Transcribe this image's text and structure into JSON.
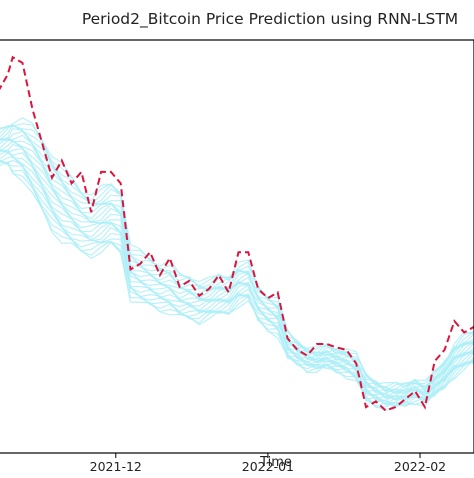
{
  "chart_data": {
    "type": "line",
    "title": "Period2_Bitcoin Price Prediction using RNN-LSTM",
    "xlabel": "Time",
    "ylabel": "",
    "x_tick_labels": [
      "2021-12",
      "2022-01",
      "2022-02"
    ],
    "x_tick_dates": [
      "2021-12-01",
      "2022-01-01",
      "2022-02-01"
    ],
    "xlim": [
      "2021-11-07",
      "2022-02-12"
    ],
    "ylim": [
      33000,
      69000
    ],
    "grid": false,
    "legend": "none",
    "colors": {
      "actual": "#dc143c",
      "predicted": "#aeeef8",
      "frame": "#000000"
    },
    "actual": {
      "style": "dashed",
      "dates": [
        "2021-11-07",
        "2021-11-09",
        "2021-11-10",
        "2021-11-12",
        "2021-11-14",
        "2021-11-16",
        "2021-11-18",
        "2021-11-20",
        "2021-11-22",
        "2021-11-24",
        "2021-11-26",
        "2021-11-28",
        "2021-11-30",
        "2021-12-02",
        "2021-12-04",
        "2021-12-06",
        "2021-12-08",
        "2021-12-10",
        "2021-12-12",
        "2021-12-14",
        "2021-12-16",
        "2021-12-18",
        "2021-12-20",
        "2021-12-22",
        "2021-12-24",
        "2021-12-26",
        "2021-12-28",
        "2021-12-30",
        "2022-01-01",
        "2022-01-03",
        "2022-01-05",
        "2022-01-07",
        "2022-01-09",
        "2022-01-11",
        "2022-01-13",
        "2022-01-15",
        "2022-01-17",
        "2022-01-19",
        "2022-01-21",
        "2022-01-23",
        "2022-01-25",
        "2022-01-27",
        "2022-01-29",
        "2022-01-31",
        "2022-02-02",
        "2022-02-04",
        "2022-02-06",
        "2022-02-08",
        "2022-02-10",
        "2022-02-12"
      ],
      "values": [
        64500,
        66000,
        67500,
        67000,
        63000,
        60000,
        57000,
        58500,
        56500,
        57500,
        54000,
        57500,
        57500,
        56500,
        49000,
        49500,
        50500,
        48500,
        50000,
        47500,
        48000,
        46700,
        47300,
        48500,
        47000,
        50500,
        50500,
        47300,
        46500,
        47000,
        43000,
        42000,
        41500,
        42500,
        42500,
        42200,
        42000,
        40800,
        37000,
        37500,
        36700,
        37000,
        37700,
        38400,
        37000,
        41000,
        42000,
        44500,
        43500,
        44000
      ]
    },
    "predicted": {
      "count": 24,
      "style": "solid",
      "dates": [
        "2021-11-07",
        "2021-11-09",
        "2021-11-10",
        "2021-11-12",
        "2021-11-14",
        "2021-11-16",
        "2021-11-18",
        "2021-11-20",
        "2021-11-22",
        "2021-11-24",
        "2021-11-26",
        "2021-11-28",
        "2021-11-30",
        "2021-12-02",
        "2021-12-04",
        "2021-12-06",
        "2021-12-08",
        "2021-12-10",
        "2021-12-12",
        "2021-12-14",
        "2021-12-16",
        "2021-12-18",
        "2021-12-20",
        "2021-12-22",
        "2021-12-24",
        "2021-12-26",
        "2021-12-28",
        "2021-12-30",
        "2022-01-01",
        "2022-01-03",
        "2022-01-05",
        "2022-01-07",
        "2022-01-09",
        "2022-01-11",
        "2022-01-13",
        "2022-01-15",
        "2022-01-17",
        "2022-01-19",
        "2022-01-21",
        "2022-01-23",
        "2022-01-25",
        "2022-01-27",
        "2022-01-29",
        "2022-01-31",
        "2022-02-02",
        "2022-02-04",
        "2022-02-06",
        "2022-02-08",
        "2022-02-10",
        "2022-02-12"
      ],
      "upper": [
        61000,
        61500,
        62000,
        62000,
        61500,
        60500,
        59000,
        58000,
        57000,
        56000,
        55500,
        56000,
        56500,
        56000,
        51000,
        50500,
        50000,
        49500,
        49500,
        48500,
        48500,
        48000,
        48000,
        48500,
        48500,
        49500,
        49500,
        47500,
        46800,
        46300,
        43500,
        42700,
        42200,
        42000,
        42300,
        42000,
        42000,
        41500,
        39800,
        39300,
        38900,
        38900,
        39000,
        39500,
        39000,
        40000,
        41000,
        42500,
        43200,
        43500
      ],
      "lower": [
        58000,
        58000,
        57500,
        57000,
        55500,
        54000,
        52500,
        51500,
        51000,
        50500,
        50300,
        50500,
        51000,
        50500,
        46500,
        46000,
        45800,
        45500,
        45300,
        44800,
        44700,
        44500,
        44800,
        45000,
        45200,
        46000,
        46200,
        44500,
        43800,
        43300,
        41200,
        40800,
        40300,
        40200,
        40400,
        40200,
        39800,
        39300,
        37600,
        37200,
        37000,
        37000,
        37200,
        37500,
        37300,
        38000,
        38800,
        39800,
        40300,
        40800
      ]
    }
  }
}
